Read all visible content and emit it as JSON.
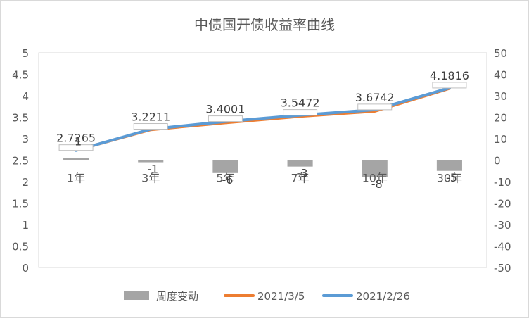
{
  "chart_data": {
    "type": "bar-line-combo",
    "title": "中债国开债收益率曲线",
    "categories": [
      "1年",
      "3年",
      "5年",
      "7年",
      "10年",
      "30年"
    ],
    "y_left": {
      "range": [
        0,
        5
      ],
      "step": 0.5,
      "ticks": [
        "0",
        "0.5",
        "1",
        "1.5",
        "2",
        "2.5",
        "3",
        "3.5",
        "4",
        "4.5",
        "5"
      ]
    },
    "y_right": {
      "range": [
        -50,
        50
      ],
      "step": 10,
      "ticks": [
        "-50",
        "-40",
        "-30",
        "-20",
        "-10",
        "0",
        "10",
        "20",
        "30",
        "40",
        "50"
      ]
    },
    "bar_series": {
      "name": "周度变动",
      "axis": "right",
      "color": "#a5a5a5",
      "values": [
        1,
        -1,
        -6,
        -3,
        -8,
        -5
      ],
      "labels": [
        "1",
        "-1",
        "-6",
        "-3",
        "-8",
        "-5"
      ]
    },
    "line_series": [
      {
        "name": "2021/3/5",
        "axis": "left",
        "color": "#ed7d31",
        "values": [
          2.73,
          3.21,
          3.37,
          3.52,
          3.64,
          4.17
        ]
      },
      {
        "name": "2021/2/26",
        "axis": "left",
        "color": "#5b9bd5",
        "values": [
          2.7265,
          3.2211,
          3.4001,
          3.5472,
          3.6742,
          4.1816
        ],
        "labels": [
          "2.7265",
          "3.2211",
          "3.4001",
          "3.5472",
          "3.6742",
          "4.1816"
        ]
      }
    ],
    "legend": {
      "position": "bottom",
      "items": [
        {
          "name": "周度变动",
          "kind": "bar",
          "color": "#a5a5a5"
        },
        {
          "name": "2021/3/5",
          "kind": "line",
          "color": "#ed7d31"
        },
        {
          "name": "2021/2/26",
          "kind": "line",
          "color": "#5b9bd5"
        }
      ]
    },
    "gridlines": false
  }
}
